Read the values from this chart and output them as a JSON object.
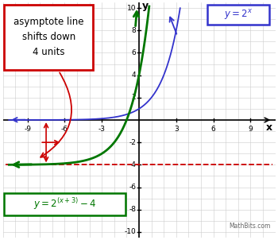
{
  "xlim": [
    -11,
    11
  ],
  "ylim": [
    -10.5,
    10.5
  ],
  "xticks": [
    -9,
    -6,
    -3,
    3,
    6,
    9
  ],
  "yticks": [
    -10,
    -8,
    -6,
    -4,
    -2,
    2,
    4,
    6,
    8,
    10
  ],
  "grid_color": "#cccccc",
  "bg_color": "#ffffff",
  "asymptote_y": -4,
  "asymptote_color": "#cc0000",
  "curve1_color": "#3333cc",
  "curve2_color": "#007700",
  "annotation_box_color": "#cc0000",
  "annotation_text": "asymptote line\nshifts down\n4 units",
  "watermark": "MathBits.com",
  "arrow_red_color": "#cc0000"
}
